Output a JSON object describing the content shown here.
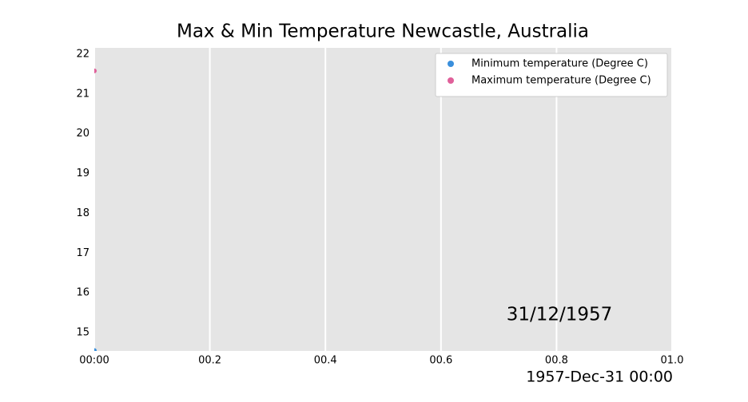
{
  "chart_data": {
    "type": "scatter",
    "title": "Max & Min Temperature Newcastle, Australia",
    "annotation": "31/12/1957",
    "x_label": "1957-Dec-31 00:00",
    "x": [
      0
    ],
    "series": [
      {
        "name": "Minimum temperature (Degree C)",
        "color": "#3a8fdc",
        "values": [
          14.55
        ]
      },
      {
        "name": "Maximum temperature (Degree C)",
        "color": "#e0609a",
        "values": [
          21.58
        ]
      }
    ],
    "xlim": [
      0,
      1
    ],
    "xticks": [
      {
        "value": 0,
        "label": "00:00"
      },
      {
        "value": 0.2,
        "label": "00.2"
      },
      {
        "value": 0.4,
        "label": "00.4"
      },
      {
        "value": 0.6,
        "label": "00.6"
      },
      {
        "value": 0.8,
        "label": "00.8"
      },
      {
        "value": 1.0,
        "label": "01.0"
      }
    ],
    "ylim": [
      14.54,
      22.16
    ],
    "yticks": [
      15,
      16,
      17,
      18,
      19,
      20,
      21,
      22
    ],
    "grid": "x",
    "legend": "upper right"
  }
}
